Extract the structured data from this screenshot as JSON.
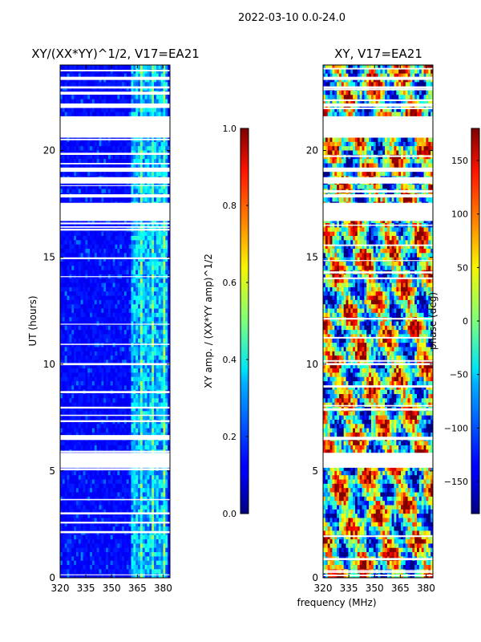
{
  "suptitle": "2022-03-10 0.0-24.0",
  "xlabel_shared": "frequency (MHz)",
  "chart_data": [
    {
      "type": "heatmap",
      "title": "XY/(XX*YY)^1/2, V17=EA21",
      "ylabel": "UT (hours)",
      "xlim": [
        320,
        384
      ],
      "ylim": [
        0,
        24
      ],
      "xticks": [
        320,
        335,
        350,
        365,
        380
      ],
      "yticks": [
        0,
        5,
        10,
        15,
        20
      ],
      "colorbar": {
        "label": "XY amp. / (XX*YY amp)^1/2",
        "range": [
          0.0,
          1.0
        ],
        "ticks": [
          "0.0",
          "0.2",
          "0.4",
          "0.6",
          "0.8",
          "1.0"
        ],
        "colormap": "jet"
      },
      "colors": {
        "background": "#00008f",
        "strong_channels": "#00d4ff",
        "mid": "#1e6bff"
      },
      "gaps_hours": [
        [
          5.15,
          5.85
        ],
        [
          6.45,
          6.6
        ],
        [
          9.95,
          10.05
        ],
        [
          16.7,
          17.55
        ],
        [
          17.8,
          17.95
        ],
        [
          18.45,
          18.75
        ],
        [
          19.0,
          19.2
        ],
        [
          20.6,
          21.6
        ],
        [
          22.05,
          22.2
        ],
        [
          22.9,
          23.0
        ],
        [
          23.3,
          23.45
        ]
      ],
      "strong_band_MHz": [
        362,
        382
      ]
    },
    {
      "type": "heatmap",
      "title": "XY, V17=EA21",
      "ylabel": "",
      "xlim": [
        320,
        384
      ],
      "ylim": [
        0,
        24
      ],
      "xticks": [
        320,
        335,
        350,
        365,
        380
      ],
      "yticks": [
        0,
        5,
        10,
        15,
        20
      ],
      "colorbar": {
        "label": "phase (deg)",
        "range": [
          -180,
          180
        ],
        "ticks": [
          "150",
          "100",
          "50",
          "0",
          "−50",
          "−100",
          "−150"
        ],
        "colormap": "jet"
      },
      "gaps_hours": [
        [
          5.15,
          5.85
        ],
        [
          6.45,
          6.6
        ],
        [
          9.95,
          10.05
        ],
        [
          16.7,
          17.55
        ],
        [
          17.8,
          17.95
        ],
        [
          18.45,
          18.75
        ],
        [
          19.0,
          19.2
        ],
        [
          20.6,
          21.6
        ],
        [
          22.05,
          22.2
        ],
        [
          22.9,
          23.0
        ],
        [
          23.3,
          23.45
        ]
      ]
    }
  ]
}
